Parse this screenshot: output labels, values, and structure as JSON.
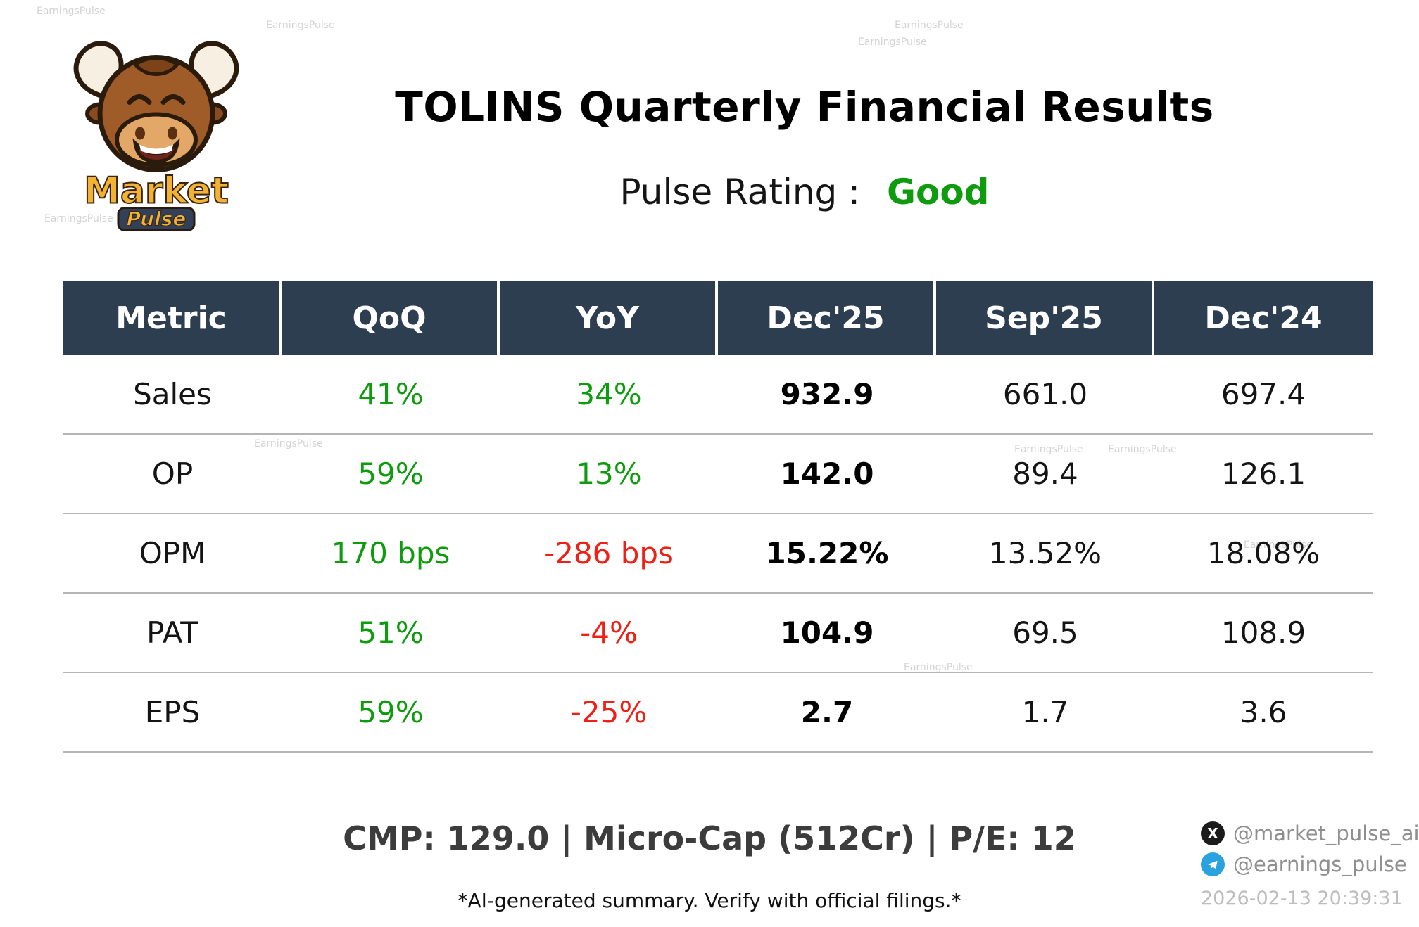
{
  "logo": {
    "line1": "Market",
    "line2": "Pulse"
  },
  "header": {
    "title": "TOLINS Quarterly Financial Results",
    "rating_label": "Pulse Rating :",
    "rating_value": "Good"
  },
  "colors": {
    "header_bg": "#2d3e50",
    "positive": "#0e9c0e",
    "negative": "#ee2116"
  },
  "table": {
    "columns": [
      "Metric",
      "QoQ",
      "YoY",
      "Dec'25",
      "Sep'25",
      "Dec'24"
    ],
    "rows": [
      {
        "metric": "Sales",
        "qoq": {
          "text": "41%",
          "sentiment": "positive"
        },
        "yoy": {
          "text": "34%",
          "sentiment": "positive"
        },
        "current": "932.9",
        "prev_q": "661.0",
        "prev_y": "697.4"
      },
      {
        "metric": "OP",
        "qoq": {
          "text": "59%",
          "sentiment": "positive"
        },
        "yoy": {
          "text": "13%",
          "sentiment": "positive"
        },
        "current": "142.0",
        "prev_q": "89.4",
        "prev_y": "126.1"
      },
      {
        "metric": "OPM",
        "qoq": {
          "text": "170 bps",
          "sentiment": "positive"
        },
        "yoy": {
          "text": "-286 bps",
          "sentiment": "negative"
        },
        "current": "15.22%",
        "prev_q": "13.52%",
        "prev_y": "18.08%"
      },
      {
        "metric": "PAT",
        "qoq": {
          "text": "51%",
          "sentiment": "positive"
        },
        "yoy": {
          "text": "-4%",
          "sentiment": "negative"
        },
        "current": "104.9",
        "prev_q": "69.5",
        "prev_y": "108.9"
      },
      {
        "metric": "EPS",
        "qoq": {
          "text": "59%",
          "sentiment": "positive"
        },
        "yoy": {
          "text": "-25%",
          "sentiment": "negative"
        },
        "current": "2.7",
        "prev_q": "1.7",
        "prev_y": "3.6"
      }
    ]
  },
  "footer": {
    "summary": "CMP: 129.0 | Micro-Cap (512Cr) | P/E: 12",
    "disclaimer": "*AI-generated summary. Verify with official filings.*",
    "social_x": "@market_pulse_ai",
    "social_telegram": "@earnings_pulse",
    "timestamp": "2026-02-13 20:39:31"
  },
  "watermark": "EarningsPulse"
}
